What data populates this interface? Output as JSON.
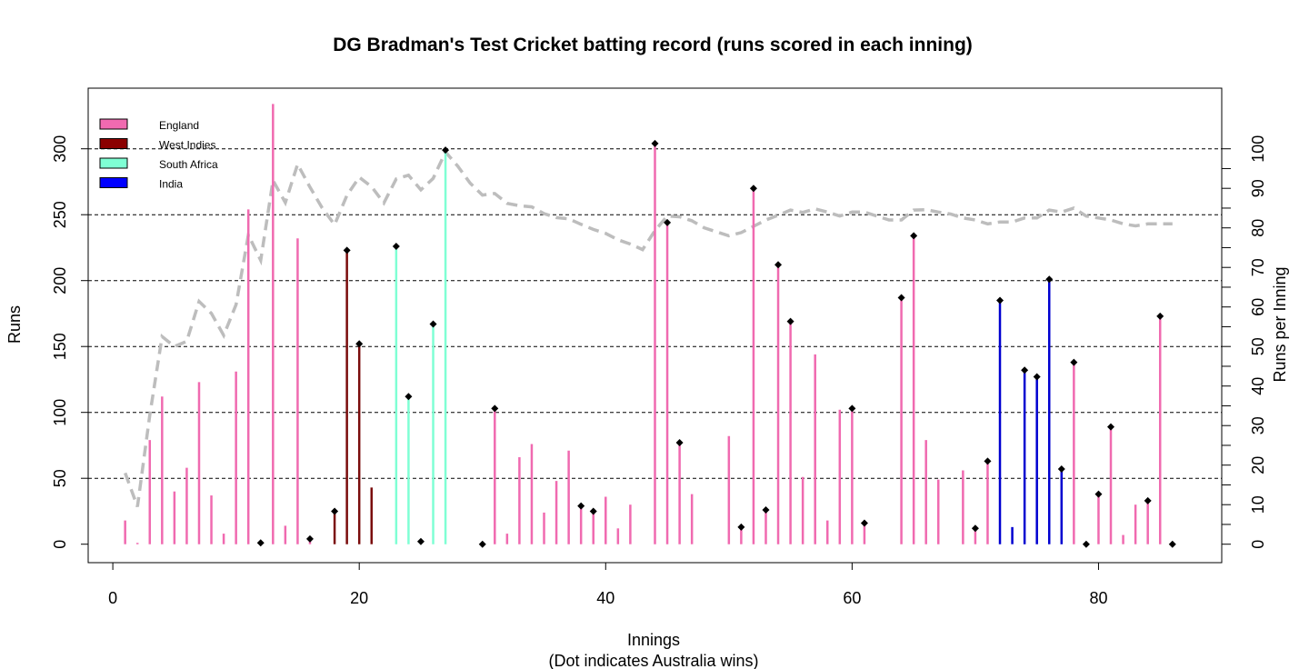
{
  "chart_data": {
    "type": "bar",
    "title": "DG Bradman's Test Cricket batting record (runs scored in each inning)",
    "xlabel": "Innings",
    "xlabel_note": "(Dot indicates  Australia wins)",
    "ylabel": "Runs",
    "ylabel_right": "Runs per Inning",
    "xlim": [
      -2,
      90
    ],
    "ylim": [
      -14,
      346
    ],
    "x_ticks": [
      0,
      20,
      40,
      60,
      80
    ],
    "y_ticks": [
      0,
      50,
      100,
      150,
      200,
      250,
      300
    ],
    "y_right_ticks": [
      0,
      10,
      20,
      30,
      40,
      50,
      60,
      70,
      80,
      90,
      100
    ],
    "y_right_minor_step": 5,
    "y_right_scale": 3.0,
    "grid_y": [
      50,
      100,
      150,
      200,
      250,
      300
    ],
    "legend": {
      "position": "top-left",
      "entries": [
        {
          "label": "England",
          "color": "#f06ab0"
        },
        {
          "label": "West Indies",
          "color": "#8b0000"
        },
        {
          "label": "South Africa",
          "color": "#7fffd4"
        },
        {
          "label": "India",
          "color": "#0000ff"
        }
      ]
    },
    "colors": {
      "England": "#f06ab0",
      "West Indies": "#7a0c0c",
      "South Africa": "#7fffd4",
      "India": "#0000d0",
      "average_line": "#bdbdbd",
      "win_dot": "#000000"
    },
    "series": [
      {
        "name": "England",
        "x": [
          1,
          2,
          3,
          4,
          5,
          6,
          7,
          8,
          9,
          10,
          11,
          12,
          13,
          14,
          15,
          16,
          31,
          32,
          33,
          34,
          35,
          36,
          37,
          38,
          39,
          40,
          41,
          42,
          44,
          45,
          46,
          47,
          48,
          49,
          50,
          51,
          52,
          53,
          54,
          55,
          56,
          57,
          58,
          59,
          60,
          61,
          64,
          65,
          66,
          67,
          68,
          69,
          70,
          71,
          78,
          79,
          80,
          81,
          82,
          83,
          84,
          85,
          86
        ],
        "values": [
          18,
          1,
          79,
          112,
          40,
          58,
          123,
          37,
          8,
          131,
          254,
          1,
          334,
          14,
          232,
          4,
          103,
          8,
          66,
          76,
          24,
          48,
          71,
          29,
          25,
          36,
          12,
          30,
          304,
          244,
          77,
          38,
          0,
          0,
          82,
          13,
          270,
          26,
          212,
          169,
          51,
          144,
          18,
          102,
          103,
          16,
          187,
          234,
          79,
          49,
          0,
          56,
          12,
          63,
          138,
          0,
          38,
          89,
          7,
          30,
          33,
          173,
          0
        ]
      },
      {
        "name": "West Indies",
        "x": [
          17,
          18,
          19,
          20,
          21
        ],
        "values": [
          0,
          25,
          223,
          152,
          43
        ]
      },
      {
        "name": "South Africa",
        "x": [
          22,
          23,
          24,
          25,
          26,
          27,
          28,
          29,
          30
        ],
        "values": [
          0,
          226,
          112,
          2,
          167,
          299,
          0,
          0,
          0
        ]
      },
      {
        "name": "India",
        "x": [
          72,
          73,
          74,
          75,
          76,
          77
        ],
        "values": [
          185,
          13,
          132,
          127,
          201,
          57
        ]
      }
    ],
    "australia_wins": [
      12,
      16,
      18,
      19,
      20,
      23,
      24,
      25,
      26,
      27,
      30,
      31,
      38,
      39,
      44,
      45,
      46,
      51,
      52,
      53,
      54,
      55,
      60,
      61,
      64,
      65,
      70,
      71,
      72,
      74,
      75,
      76,
      77,
      78,
      79,
      80,
      81,
      84,
      85,
      86
    ],
    "running_average": [
      18,
      9.5,
      32.7,
      52.5,
      50,
      51.3,
      61.4,
      58.4,
      52.8,
      60.6,
      78.2,
      71.8,
      92,
      86.4,
      96.1,
      90.3,
      85,
      80.8,
      88.2,
      92.8,
      90.4,
      86.3,
      92.4,
      93.3,
      89.6,
      92.5,
      99.2,
      95.6,
      91.3,
      88.3,
      88.7,
      86.2,
      85.6,
      85.3,
      83.6,
      82.6,
      82.3,
      80.9,
      79.6,
      78.6,
      77,
      75.9,
      74.5,
      79.3,
      83,
      82.8,
      81.8,
      80,
      79,
      78,
      78.8,
      80.4,
      82,
      83.2,
      84.5,
      83.9,
      84.8,
      84,
      83,
      84,
      84,
      83,
      82,
      82,
      84.5,
      84.6,
      84,
      83.5,
      82.5,
      82,
      81,
      81.5,
      81.5,
      82.5,
      82.5,
      84.5,
      84,
      85,
      83,
      82.5,
      82,
      81,
      80.5,
      81,
      81,
      81
    ]
  }
}
